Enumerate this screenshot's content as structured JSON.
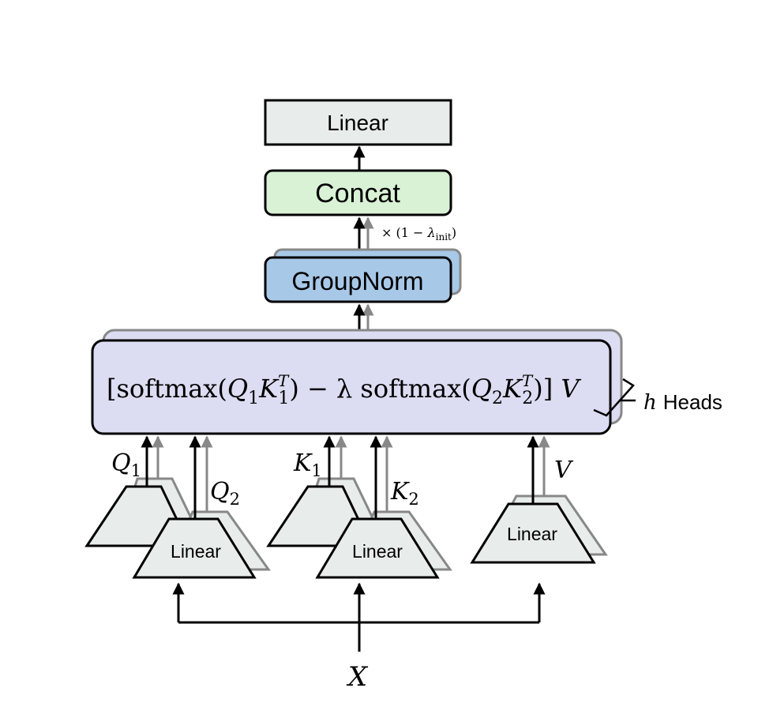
{
  "blocks": {
    "top_linear": "Linear",
    "concat": "Concat",
    "groupnorm": "GroupNorm",
    "linear_q": "Linear",
    "linear_k": "Linear",
    "linear_v": "Linear"
  },
  "scale_note": {
    "prefix": "× (1 − ",
    "lambda": "λ",
    "sub": "init",
    "suffix": ")"
  },
  "formula": {
    "open": "[softmax(",
    "q1": "Q",
    "q1_sub": "1",
    "k1": "K",
    "k1_sub": "1",
    "k1_sup": "T",
    "middle": ") − λ softmax(",
    "q2": "Q",
    "q2_sub": "2",
    "k2": "K",
    "k2_sub": "2",
    "k2_sup": "T",
    "close": ")] ",
    "v": "V"
  },
  "heads": {
    "h": "h",
    "label": "Heads"
  },
  "inputs": {
    "q1": "Q",
    "q1_sub": "1",
    "q2": "Q",
    "q2_sub": "2",
    "k1": "K",
    "k1_sub": "1",
    "k2": "K",
    "k2_sub": "2",
    "v": "V",
    "x": "X"
  },
  "colors": {
    "linear_fill": "#e8ecea",
    "concat_fill": "#d9f2d5",
    "groupnorm_fill": "#a8c8e8",
    "attention_fill": "#dcdcf2",
    "stroke": "#000000",
    "shadow_stroke": "#888888"
  }
}
